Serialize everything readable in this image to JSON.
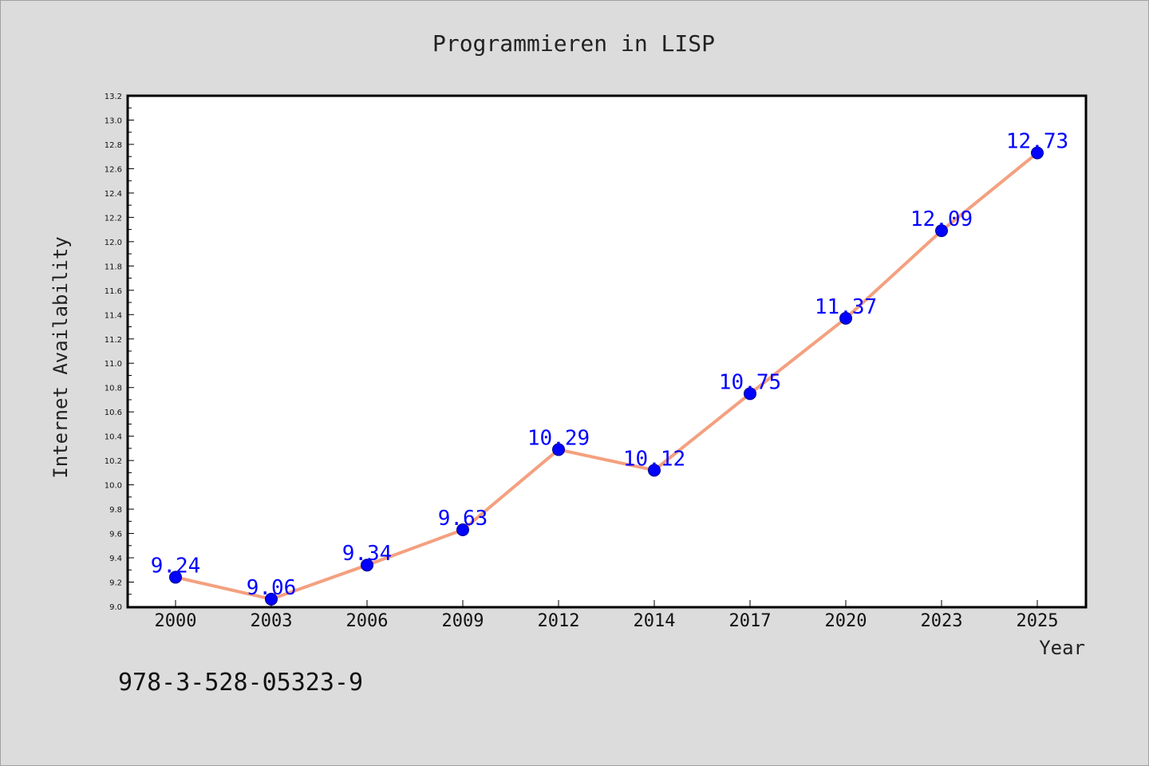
{
  "chart_data": {
    "type": "line",
    "title": "Programmieren in LISP",
    "xlabel": "Year",
    "ylabel": "Internet Availability",
    "categories": [
      "2000",
      "2003",
      "2006",
      "2009",
      "2012",
      "2014",
      "2017",
      "2020",
      "2023",
      "2025"
    ],
    "series": [
      {
        "values": [
          9.24,
          9.06,
          9.34,
          9.63,
          10.29,
          10.12,
          10.75,
          11.37,
          12.09,
          12.73
        ],
        "data_labels": [
          "9.24",
          "9.06",
          "9.34",
          "9.63",
          "10.29",
          "10.12",
          "10.75",
          "11.37",
          "12.09",
          "12.73"
        ],
        "line_color": "#f4a07f",
        "marker_color": "#0000ff"
      }
    ],
    "ylim": [
      9.0,
      13.2
    ],
    "yticks": [
      "9.0",
      "9.2",
      "9.4",
      "9.6",
      "9.8",
      "10.0",
      "10.2",
      "10.4",
      "10.6",
      "10.8",
      "11.0",
      "11.2",
      "11.4",
      "11.6",
      "11.8",
      "12.0",
      "12.2",
      "12.4",
      "12.6",
      "12.8",
      "13.0",
      "13.2"
    ],
    "grid": false,
    "legend": "none"
  },
  "footer": {
    "text": "978-3-528-05323-9"
  },
  "colors": {
    "background": "#dcdcdc",
    "plot_background": "#ffffff",
    "data_label": "#0000ff"
  }
}
